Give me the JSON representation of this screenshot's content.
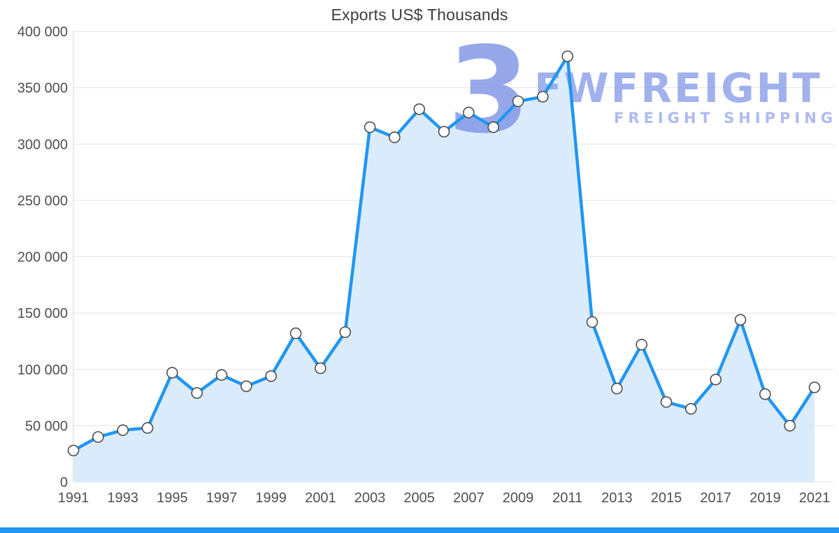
{
  "title": "Exports US$ Thousands",
  "watermark": {
    "big_glyph": "3",
    "brand": "FWFREIGHT",
    "tagline": "FREIGHT SHIPPING"
  },
  "colors": {
    "line": "#2196f3",
    "area": "#daecfb",
    "marker_fill": "#ffffff",
    "marker_stroke": "#4d4d4d",
    "grid": "#e2e2e2",
    "axis_line": "#d6d6d6",
    "axis_text": "#4f4f4f",
    "bottom_bar": "#2196f3",
    "watermark": "#8a9ee9"
  },
  "chart_data": {
    "type": "line",
    "title": "Exports US$ Thousands",
    "x": [
      1991,
      1992,
      1993,
      1994,
      1995,
      1996,
      1997,
      1998,
      1999,
      2000,
      2001,
      2002,
      2003,
      2004,
      2005,
      2006,
      2007,
      2008,
      2009,
      2010,
      2011,
      2012,
      2013,
      2014,
      2015,
      2016,
      2017,
      2018,
      2019,
      2020,
      2021
    ],
    "series": [
      {
        "name": "Exports US$ Thousands",
        "values": [
          28000,
          40000,
          46000,
          48000,
          97000,
          79000,
          95000,
          85000,
          94000,
          132000,
          101000,
          133000,
          315000,
          306000,
          331000,
          311000,
          328000,
          315000,
          338000,
          342000,
          378000,
          142000,
          83000,
          122000,
          71000,
          65000,
          91000,
          144000,
          78000,
          50000,
          84000
        ]
      }
    ],
    "ylim": [
      0,
      400000
    ],
    "y_ticks": [
      0,
      50000,
      100000,
      150000,
      200000,
      250000,
      300000,
      350000,
      400000
    ],
    "y_tick_labels": [
      "0",
      "50 000",
      "100 000",
      "150 000",
      "200 000",
      "250 000",
      "300 000",
      "350 000",
      "400 000"
    ],
    "x_tick_labels": [
      "1991",
      "1993",
      "1995",
      "1997",
      "1999",
      "2001",
      "2003",
      "2005",
      "2007",
      "2009",
      "2011",
      "2013",
      "2015",
      "2017",
      "2019",
      "2021"
    ],
    "grid": true,
    "legend_position": "none",
    "area_fill": true,
    "markers": true
  }
}
